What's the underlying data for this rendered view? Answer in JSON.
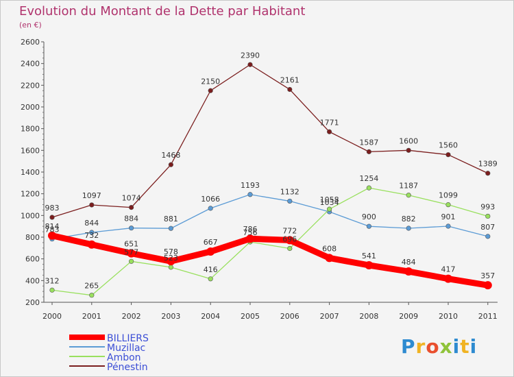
{
  "header": {
    "title": "Evolution du Montant de la Dette par Habitant",
    "unit": "(en €)"
  },
  "logo": {
    "text": "Proxiti"
  },
  "chart_data": {
    "type": "line",
    "categories": [
      "2000",
      "2001",
      "2002",
      "2003",
      "2004",
      "2005",
      "2006",
      "2007",
      "2008",
      "2009",
      "2010",
      "2011"
    ],
    "ylim": [
      200,
      2600
    ],
    "yticks": [
      200,
      400,
      600,
      800,
      1000,
      1200,
      1400,
      1600,
      1800,
      2000,
      2200,
      2400,
      2600
    ],
    "grid": false,
    "legend": "bottom-left",
    "series": [
      {
        "name": "BILLIERS",
        "color": "#ff0000",
        "emphasis": true,
        "values": [
          814,
          732,
          651,
          578,
          667,
          786,
          772,
          608,
          541,
          484,
          417,
          357
        ]
      },
      {
        "name": "Muzillac",
        "color": "#5b9bd5",
        "values": [
          783,
          844,
          884,
          881,
          1066,
          1193,
          1132,
          1034,
          900,
          882,
          901,
          807
        ]
      },
      {
        "name": "Ambon",
        "color": "#99e05e",
        "values": [
          312,
          265,
          577,
          523,
          416,
          756,
          696,
          1058,
          1254,
          1187,
          1099,
          993
        ]
      },
      {
        "name": "Pénestin",
        "color": "#7b1e1e",
        "values": [
          983,
          1097,
          1074,
          1468,
          2150,
          2390,
          2161,
          1771,
          1587,
          1600,
          1560,
          1389
        ]
      }
    ]
  }
}
